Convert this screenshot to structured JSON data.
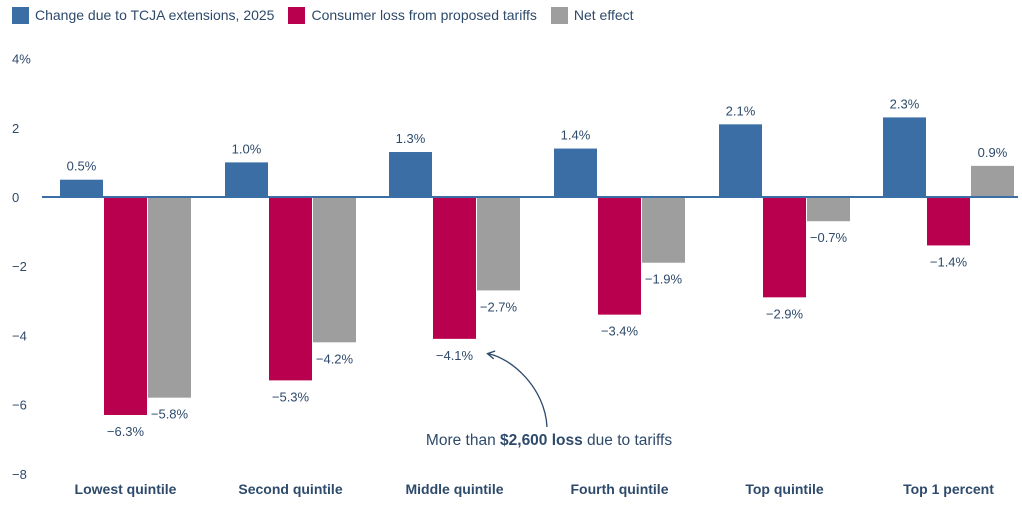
{
  "chart_data": {
    "type": "bar",
    "categories": [
      "Lowest quintile",
      "Second quintile",
      "Middle quintile",
      "Fourth quintile",
      "Top quintile",
      "Top 1 percent"
    ],
    "series": [
      {
        "name": "Change due to TCJA extensions, 2025",
        "color": "#3a6ea5",
        "values": [
          0.5,
          1.0,
          1.3,
          1.4,
          2.1,
          2.3
        ],
        "labels": [
          "0.5%",
          "1.0%",
          "1.3%",
          "1.4%",
          "2.1%",
          "2.3%"
        ]
      },
      {
        "name": "Consumer loss from proposed tariffs",
        "color": "#b8004e",
        "values": [
          -6.3,
          -5.3,
          -4.1,
          -3.4,
          -2.9,
          -1.4
        ],
        "labels": [
          "−6.3%",
          "−5.3%",
          "−4.1%",
          "−3.4%",
          "−2.9%",
          "−1.4%"
        ]
      },
      {
        "name": "Net effect",
        "color": "#9e9e9e",
        "values": [
          -5.8,
          -4.2,
          -2.7,
          -1.9,
          -0.7,
          0.9
        ],
        "labels": [
          "−5.8%",
          "−4.2%",
          "−2.7%",
          "−1.9%",
          "−0.7%",
          "0.9%"
        ]
      }
    ],
    "ylim": [
      -8,
      4
    ],
    "yticks": [
      {
        "value": 4,
        "label": "4%"
      },
      {
        "value": 2,
        "label": "2"
      },
      {
        "value": 0,
        "label": "0"
      },
      {
        "value": -2,
        "label": "−2"
      },
      {
        "value": -4,
        "label": "−4"
      },
      {
        "value": -6,
        "label": "−6"
      },
      {
        "value": -8,
        "label": "−8"
      }
    ],
    "legend_position": "top-left",
    "grid": false,
    "annotation": {
      "prefix": "More than ",
      "bold": "$2,600 loss",
      "suffix": " due to tariffs",
      "target_category": "Middle quintile",
      "target_series": "Consumer loss from proposed tariffs"
    }
  }
}
